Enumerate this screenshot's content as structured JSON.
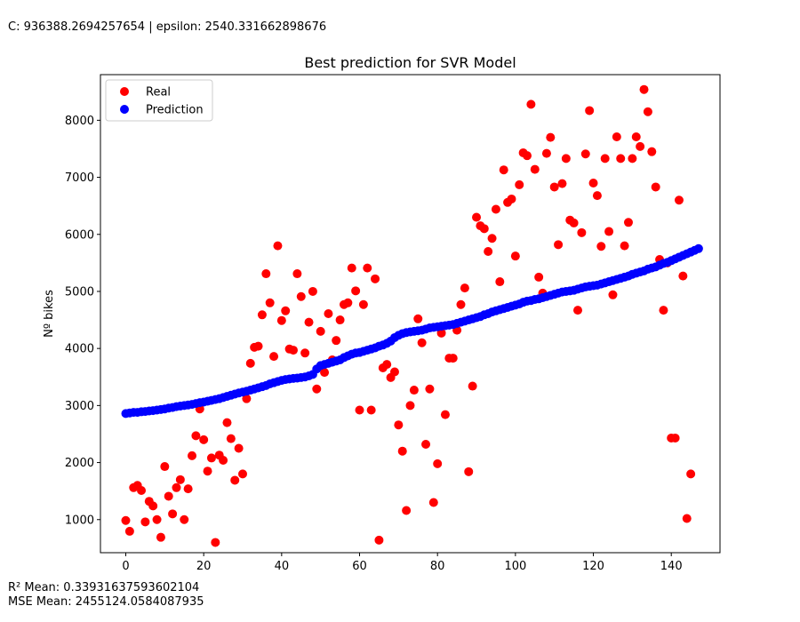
{
  "header": {
    "params_text": "C: 936388.2694257654 | epsilon: 2540.331662898676"
  },
  "footer": {
    "r2_text": "R² Mean: 0.33931637593602104",
    "mse_text": "MSE Mean: 2455124.0584087935"
  },
  "chart_data": {
    "type": "scatter",
    "title": "Best prediction for SVR Model",
    "xlabel": "",
    "ylabel": "Nº bikes",
    "xlim": [
      -6.5,
      152.5
    ],
    "ylim": [
      420,
      8800
    ],
    "xticks": [
      0,
      20,
      40,
      60,
      80,
      100,
      120,
      140
    ],
    "yticks": [
      1000,
      2000,
      3000,
      4000,
      5000,
      6000,
      7000,
      8000
    ],
    "legend_position": "upper-left",
    "series": [
      {
        "name": "Real",
        "color": "#ff0000",
        "values": [
          985,
          795,
          1560,
          1600,
          1510,
          960,
          1320,
          1240,
          1000,
          690,
          1930,
          1410,
          1100,
          1560,
          1700,
          1000,
          1540,
          2120,
          2470,
          2940,
          2400,
          1850,
          2080,
          600,
          2130,
          2040,
          2700,
          2420,
          1690,
          2250,
          1800,
          3120,
          3740,
          4020,
          4040,
          4590,
          5310,
          4800,
          3860,
          5800,
          4490,
          4660,
          3990,
          3970,
          5310,
          4910,
          3920,
          4460,
          5000,
          3290,
          4300,
          3580,
          4610,
          3800,
          4140,
          4500,
          4770,
          4800,
          5410,
          5010,
          2920,
          4770,
          5410,
          2920,
          5220,
          640,
          3660,
          3720,
          3490,
          3590,
          2660,
          2200,
          1160,
          3000,
          3270,
          4520,
          4100,
          2320,
          3290,
          1300,
          1980,
          4270,
          2840,
          3830,
          3830,
          4320,
          4770,
          5060,
          1840,
          3340,
          6300,
          6150,
          6100,
          5700,
          5930,
          6440,
          5170,
          7130,
          6560,
          6620,
          5620,
          6870,
          7430,
          7380,
          8280,
          7140,
          5250,
          4970,
          7420,
          7700,
          6830,
          5820,
          6890,
          7330,
          6250,
          6200,
          4670,
          6030,
          7410,
          8170,
          6900,
          6680,
          5790,
          7330,
          6050,
          4940,
          7710,
          7330,
          5800,
          6210,
          7330,
          7710,
          7540,
          8540,
          8150,
          7450,
          6830,
          5560,
          4670,
          5500,
          2430,
          2430,
          6600,
          5270,
          1020,
          1800
        ]
      },
      {
        "name": "Prediction",
        "color": "#0000ff",
        "values": [
          2860,
          2870,
          2880,
          2880,
          2890,
          2895,
          2905,
          2910,
          2920,
          2930,
          2940,
          2955,
          2965,
          2980,
          2990,
          3000,
          3010,
          3020,
          3035,
          3050,
          3060,
          3075,
          3090,
          3105,
          3120,
          3140,
          3160,
          3180,
          3200,
          3220,
          3235,
          3250,
          3270,
          3290,
          3310,
          3330,
          3350,
          3380,
          3400,
          3420,
          3440,
          3455,
          3465,
          3475,
          3480,
          3490,
          3500,
          3520,
          3545,
          3640,
          3700,
          3720,
          3740,
          3760,
          3780,
          3800,
          3840,
          3870,
          3900,
          3920,
          3930,
          3950,
          3970,
          3990,
          4010,
          4040,
          4060,
          4090,
          4130,
          4190,
          4230,
          4260,
          4280,
          4290,
          4300,
          4310,
          4320,
          4340,
          4360,
          4370,
          4380,
          4390,
          4400,
          4410,
          4420,
          4440,
          4460,
          4480,
          4500,
          4520,
          4540,
          4560,
          4590,
          4610,
          4640,
          4660,
          4680,
          4700,
          4720,
          4740,
          4760,
          4780,
          4810,
          4830,
          4840,
          4860,
          4870,
          4890,
          4910,
          4930,
          4950,
          4970,
          4990,
          5000,
          5010,
          5020,
          5040,
          5060,
          5080,
          5090,
          5100,
          5110,
          5130,
          5150,
          5170,
          5190,
          5210,
          5230,
          5250,
          5270,
          5300,
          5320,
          5340,
          5360,
          5390,
          5410,
          5430,
          5460,
          5490,
          5510,
          5540,
          5570,
          5600,
          5630,
          5660,
          5690,
          5720,
          5750
        ]
      }
    ]
  }
}
